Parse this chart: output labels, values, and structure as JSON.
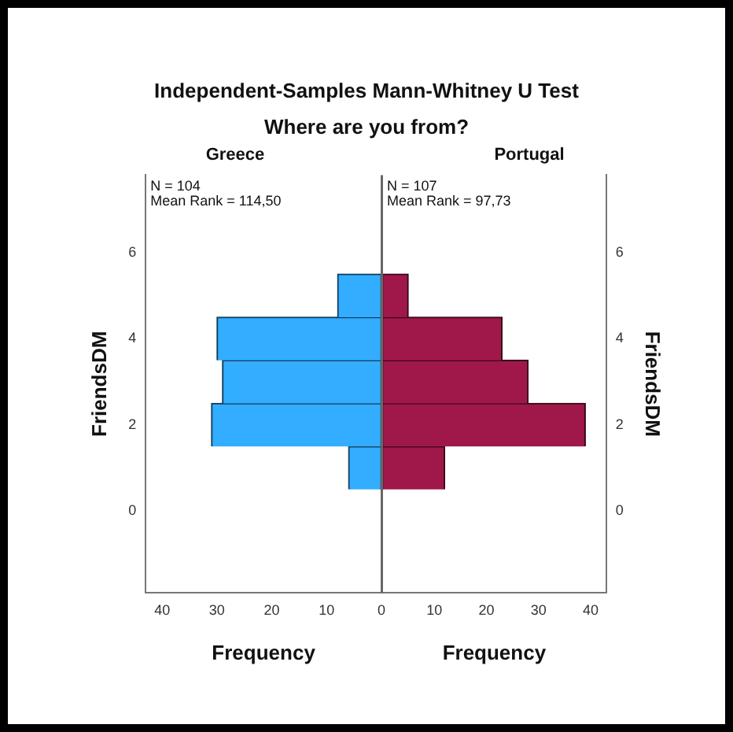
{
  "chart_data": [
    {
      "type": "histogram",
      "title": "Independent-Samples Mann-Whitney U Test",
      "subtitle": "Where are you from?",
      "orientation": "horizontal",
      "bins": [
        0.5,
        1.5,
        2.5,
        3.5,
        4.5,
        5.5
      ],
      "series": [
        {
          "name": "Greece",
          "color": "#33adff",
          "values": [
            6,
            31,
            29,
            30,
            8
          ]
        }
      ],
      "annotations": [
        "N = 104",
        "Mean Rank = 114,50"
      ],
      "xlabel": "Frequency",
      "ylabel": "FriendsDM",
      "xlim": [
        43,
        0
      ],
      "xticks": [
        40,
        30,
        20,
        10,
        0
      ],
      "ylim": [
        -1.9,
        7.8
      ],
      "yticks": [
        0,
        2,
        4,
        6
      ],
      "grid": false,
      "legend": false
    },
    {
      "type": "histogram",
      "orientation": "horizontal",
      "bins": [
        0.5,
        1.5,
        2.5,
        3.5,
        4.5,
        5.5
      ],
      "series": [
        {
          "name": "Portugal",
          "color": "#a0184a",
          "values": [
            12,
            39,
            28,
            23,
            5
          ]
        }
      ],
      "annotations": [
        "N = 107",
        "Mean Rank = 97,73"
      ],
      "xlabel": "Frequency",
      "ylabel": "FriendsDM",
      "xlim": [
        0,
        43
      ],
      "xticks": [
        10,
        20,
        30,
        40
      ],
      "ylim": [
        -1.9,
        7.8
      ],
      "yticks": [
        0,
        2,
        4,
        6
      ],
      "grid": false,
      "legend": false
    }
  ]
}
